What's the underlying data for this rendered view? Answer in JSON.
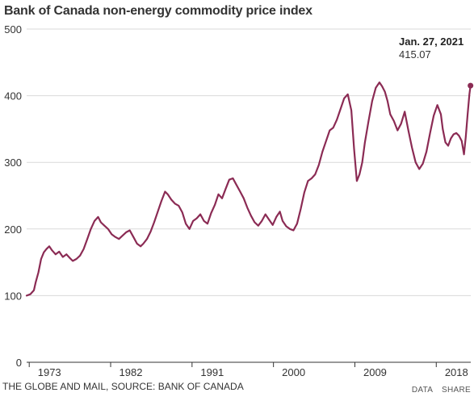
{
  "chart_data": {
    "type": "line",
    "title": "Bank of Canada non-energy commodity price index",
    "xlabel": "",
    "ylabel": "",
    "ylim": [
      0,
      500
    ],
    "xlim": [
      1972.0,
      2021.1
    ],
    "yticks": [
      0,
      100,
      200,
      300,
      400,
      500
    ],
    "xticks": [
      1973,
      1982,
      1991,
      2000,
      2009,
      2018
    ],
    "grid": true,
    "series": [
      {
        "color": "#8b2b54",
        "x": [
          1972.0,
          1972.4,
          1972.8,
          1973.0,
          1973.3,
          1973.6,
          1973.9,
          1974.2,
          1974.5,
          1974.8,
          1975.2,
          1975.6,
          1976.0,
          1976.4,
          1976.8,
          1977.1,
          1977.5,
          1977.9,
          1978.3,
          1978.7,
          1979.1,
          1979.5,
          1979.9,
          1980.2,
          1980.6,
          1981.0,
          1981.4,
          1981.8,
          1982.2,
          1982.6,
          1983.0,
          1983.4,
          1983.8,
          1984.2,
          1984.6,
          1984.9,
          1985.3,
          1985.7,
          1986.1,
          1986.5,
          1986.9,
          1987.3,
          1987.6,
          1988.0,
          1988.4,
          1988.8,
          1989.2,
          1989.6,
          1990.0,
          1990.4,
          1990.8,
          1991.2,
          1991.6,
          1992.0,
          1992.4,
          1992.8,
          1993.2,
          1993.6,
          1994.0,
          1994.4,
          1994.8,
          1995.2,
          1995.6,
          1996.0,
          1996.4,
          1996.8,
          1997.2,
          1997.6,
          1998.0,
          1998.4,
          1998.8,
          1999.2,
          1999.6,
          2000.0,
          2000.3,
          2000.7,
          2001.1,
          2001.5,
          2001.9,
          2002.3,
          2002.7,
          2003.1,
          2003.5,
          2003.9,
          2004.3,
          2004.7,
          2005.1,
          2005.5,
          2005.9,
          2006.3,
          2006.7,
          2007.1,
          2007.5,
          2007.9,
          2008.2,
          2008.5,
          2008.8,
          2009.1,
          2009.4,
          2009.8,
          2010.2,
          2010.6,
          2011.0,
          2011.3,
          2011.6,
          2011.9,
          2012.2,
          2012.6,
          2013.0,
          2013.4,
          2013.8,
          2014.2,
          2014.6,
          2015.0,
          2015.4,
          2015.8,
          2016.2,
          2016.6,
          2017.0,
          2017.4,
          2017.8,
          2018.0,
          2018.3,
          2018.6,
          2018.9,
          2019.2,
          2019.5,
          2019.8,
          2020.1,
          2020.35,
          2020.55,
          2020.75,
          2020.95,
          2021.07
        ],
        "values": [
          100,
          102,
          108,
          120,
          135,
          155,
          165,
          170,
          174,
          168,
          162,
          166,
          158,
          162,
          156,
          152,
          155,
          160,
          170,
          185,
          200,
          212,
          218,
          210,
          205,
          200,
          192,
          188,
          185,
          190,
          195,
          198,
          188,
          178,
          174,
          178,
          185,
          196,
          210,
          226,
          242,
          256,
          252,
          244,
          238,
          235,
          225,
          208,
          200,
          212,
          216,
          222,
          212,
          208,
          224,
          236,
          252,
          246,
          260,
          274,
          276,
          266,
          256,
          246,
          232,
          220,
          210,
          205,
          212,
          222,
          214,
          206,
          218,
          226,
          212,
          204,
          200,
          198,
          208,
          230,
          255,
          272,
          276,
          282,
          296,
          316,
          332,
          348,
          352,
          364,
          380,
          396,
          402,
          378,
          320,
          272,
          282,
          300,
          330,
          362,
          392,
          412,
          420,
          414,
          406,
          392,
          372,
          362,
          348,
          358,
          376,
          348,
          322,
          300,
          290,
          298,
          316,
          344,
          370,
          386,
          372,
          350,
          330,
          325,
          336,
          342,
          344,
          340,
          332,
          312,
          338,
          372,
          402,
          415.07
        ]
      }
    ],
    "annotation": {
      "label": "Jan. 27, 2021",
      "value_text": "415.07",
      "x": 2021.07,
      "y": 415.07
    }
  },
  "footer": {
    "source": "THE GLOBE AND MAIL, SOURCE: BANK OF CANADA",
    "data_link": "DATA",
    "share_link": "SHARE"
  }
}
